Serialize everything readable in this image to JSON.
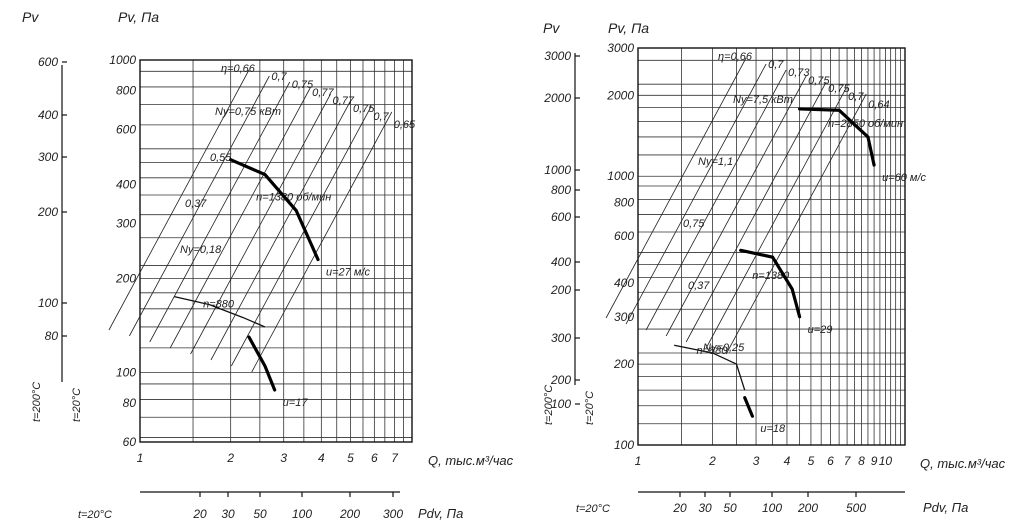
{
  "chart_data": [
    {
      "type": "line",
      "header_left": "Pv",
      "header_right": "Pv, Па",
      "xlabel": "Q, тыс.м³/час",
      "x_scale": "log",
      "y_scale": "log",
      "xlim": [
        1,
        8
      ],
      "ylim": [
        60,
        1000
      ],
      "x_ticks": [
        "1",
        "2",
        "3",
        "4",
        "5",
        "6",
        "7"
      ],
      "y_ticks": [
        "60",
        "80",
        "100",
        "200",
        "300",
        "400",
        "600",
        "800",
        "1000"
      ],
      "left_axis_ticks": [
        "600",
        "400",
        "300",
        "200",
        "100",
        "80"
      ],
      "left_axis_label": "t=200°C",
      "left_axis_label2": "t=20°C",
      "bottom_scale_label": "t=20°C",
      "bottom_scale_ticks": [
        "20",
        "30",
        "50",
        "100",
        "200",
        "300"
      ],
      "bottom_scale_title": "Pdv, Па",
      "speeds": [
        {
          "label": "n=1380 об/мин",
          "points": [
            [
              2.0,
              480
            ],
            [
              2.6,
              430
            ],
            [
              3.3,
              330
            ],
            [
              3.9,
              230
            ]
          ]
        },
        {
          "label": "n=880",
          "points": [
            [
              1.3,
              175
            ],
            [
              1.7,
              165
            ],
            [
              2.2,
              150
            ],
            [
              2.6,
              140
            ]
          ]
        }
      ],
      "work_segments": [
        [
          [
            2.0,
            480
          ],
          [
            2.6,
            430
          ],
          [
            3.3,
            330
          ],
          [
            3.9,
            230
          ]
        ],
        [
          [
            2.3,
            130
          ],
          [
            2.6,
            105
          ],
          [
            2.8,
            88
          ]
        ]
      ],
      "power_labels": [
        "Nу=0,75 кВт",
        "0,55",
        "0,37",
        "Nу=0,18"
      ],
      "efficiency_labels": [
        "η=0,66",
        "0,7",
        "0,75",
        "0,77",
        "0,77",
        "0,75",
        "0,7",
        "0,65"
      ],
      "velocity_labels": [
        "u=27 м/с",
        "u=17"
      ]
    },
    {
      "type": "line",
      "header_left": "Pv",
      "header_right": "Pv, Па",
      "xlabel": "Q, тыс.м³/час",
      "x_scale": "log",
      "y_scale": "log",
      "xlim": [
        1,
        12
      ],
      "ylim": [
        100,
        3000
      ],
      "x_ticks": [
        "1",
        "2",
        "3",
        "4",
        "5",
        "6",
        "7",
        "8",
        "9",
        "10"
      ],
      "y_ticks": [
        "100",
        "200",
        "300",
        "400",
        "600",
        "800",
        "1000",
        "2000",
        "3000"
      ],
      "left_axis_ticks": [
        "3000",
        "2000",
        "1000",
        "800",
        "600",
        "400",
        "200",
        "300",
        "200",
        "100"
      ],
      "left_axis_label": "t=200°C",
      "left_axis_label2": "t=20°C",
      "bottom_scale_label": "t=20°C",
      "bottom_scale_ticks": [
        "20",
        "30",
        "50",
        "100",
        "200",
        "500"
      ],
      "bottom_scale_title": "Pdv, Па",
      "speeds": [
        {
          "label": "n=2850 об/мин",
          "points": [
            [
              4.5,
              1780
            ],
            [
              6.5,
              1760
            ],
            [
              8.5,
              1400
            ],
            [
              9.0,
              1100
            ]
          ]
        },
        {
          "label": "n=1380",
          "points": [
            [
              2.6,
              530
            ],
            [
              3.5,
              500
            ],
            [
              4.2,
              380
            ],
            [
              4.5,
              300
            ]
          ]
        },
        {
          "label": "n=880",
          "points": [
            [
              1.4,
              235
            ],
            [
              2.0,
              220
            ],
            [
              2.5,
              200
            ],
            [
              2.7,
              160
            ]
          ]
        }
      ],
      "work_segments": [
        [
          [
            4.5,
            1780
          ],
          [
            6.5,
            1760
          ],
          [
            8.5,
            1400
          ],
          [
            9.0,
            1100
          ]
        ],
        [
          [
            2.6,
            530
          ],
          [
            3.5,
            500
          ],
          [
            4.2,
            380
          ],
          [
            4.5,
            300
          ]
        ],
        [
          [
            2.7,
            150
          ],
          [
            2.9,
            128
          ]
        ]
      ],
      "power_labels": [
        "Nу=7,5 кВт",
        "Nу=1,1",
        "0,75",
        "0,37",
        "Nу=0,25"
      ],
      "efficiency_labels": [
        "η=0,66",
        "0,7",
        "0,73",
        "0,75",
        "0,75",
        "0,7",
        "0,64"
      ],
      "velocity_labels": [
        "u=60 м/с",
        "u=29",
        "u=18"
      ]
    }
  ]
}
